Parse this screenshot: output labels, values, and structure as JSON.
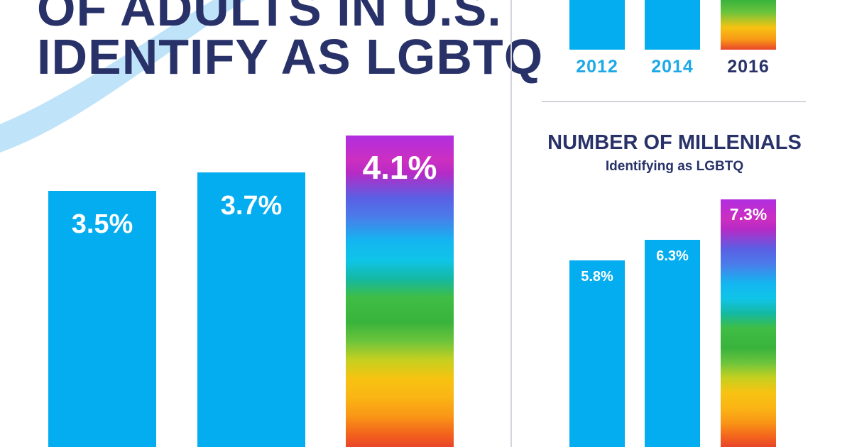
{
  "headline": {
    "line1": "OF ADULTS IN U.S.",
    "line2": "IDENTIFY AS LGBTQ"
  },
  "colors": {
    "navy": "#283269",
    "bar_blue": "#03adef",
    "year_blue": "#1da9e8",
    "swoosh": "#bfe3f8"
  },
  "chart_data": [
    {
      "type": "bar",
      "title": "OF ADULTS IN U.S. IDENTIFY AS LGBTQ",
      "categories": [
        "2012",
        "2014",
        "2016"
      ],
      "values": [
        3.5,
        3.7,
        4.1
      ],
      "value_labels": [
        "3.5%",
        "3.7%",
        "4.1%"
      ],
      "unit": "%",
      "bar_styles": [
        "solid",
        "solid",
        "rainbow"
      ],
      "grid": false
    },
    {
      "type": "bar",
      "title": "NUMBER OF MILLENIALS",
      "subtitle": "Identifying as LGBTQ",
      "categories": [
        "2012",
        "2014",
        "2016"
      ],
      "values": [
        5.8,
        6.3,
        7.3
      ],
      "value_labels": [
        "5.8%",
        "6.3%",
        "7.3%"
      ],
      "unit": "%",
      "bar_styles": [
        "solid",
        "solid",
        "rainbow"
      ],
      "grid": false
    }
  ]
}
